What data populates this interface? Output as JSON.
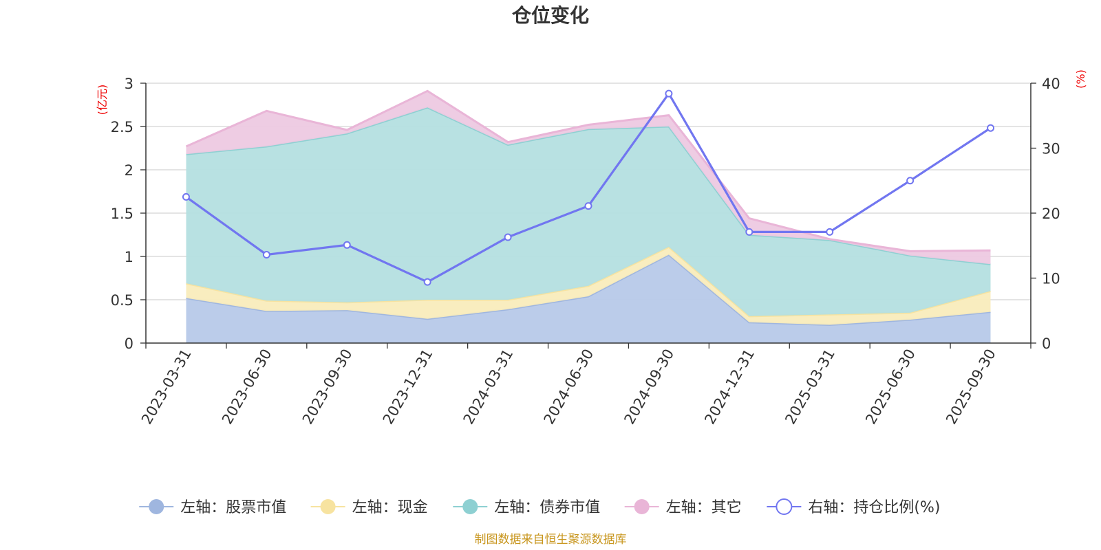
{
  "chart_data": {
    "type": "area",
    "title": "仓位变化",
    "source_note": "制图数据来自恒生聚源数据库",
    "left_axis": {
      "unit": "(亿元)",
      "min": 0,
      "max": 3,
      "ticks": [
        "0",
        "0.5",
        "1",
        "1.5",
        "2",
        "2.5",
        "3"
      ]
    },
    "right_axis": {
      "unit": "(%)",
      "min": 0,
      "max": 40,
      "ticks": [
        "0",
        "10",
        "20",
        "30",
        "40"
      ]
    },
    "categories": [
      "2023-03-31",
      "2023-06-30",
      "2023-09-30",
      "2023-12-31",
      "2024-03-31",
      "2024-06-30",
      "2024-09-30",
      "2024-12-31",
      "2025-03-31",
      "2025-06-30",
      "2025-09-30"
    ],
    "stacked_series": [
      {
        "name": "左轴：股票市值",
        "color": "#9fb6df",
        "fill": "#b7c9e9",
        "values": [
          0.52,
          0.37,
          0.38,
          0.28,
          0.39,
          0.54,
          1.02,
          0.24,
          0.21,
          0.27,
          0.36
        ]
      },
      {
        "name": "左轴：现金",
        "color": "#f7e3a0",
        "fill": "#f9ecbc",
        "values": [
          0.17,
          0.12,
          0.09,
          0.22,
          0.11,
          0.12,
          0.09,
          0.07,
          0.12,
          0.08,
          0.24
        ]
      },
      {
        "name": "左轴：债券市值",
        "color": "#8ed0d2",
        "fill": "#b4dfe0",
        "values": [
          1.49,
          1.78,
          1.95,
          2.22,
          1.79,
          1.81,
          1.39,
          0.94,
          0.86,
          0.66,
          0.31
        ]
      },
      {
        "name": "左轴：其它",
        "color": "#e9b5d7",
        "fill": "#edc9e1",
        "values": [
          0.09,
          0.41,
          0.04,
          0.19,
          0.03,
          0.05,
          0.13,
          0.19,
          0.01,
          0.05,
          0.16
        ]
      }
    ],
    "line_series": {
      "name": "右轴：持仓比例(%)",
      "color": "#7176f0",
      "values": [
        22.5,
        13.6,
        15.1,
        9.4,
        16.3,
        21.1,
        38.4,
        17.1,
        17.1,
        25.0,
        33.1
      ]
    }
  }
}
